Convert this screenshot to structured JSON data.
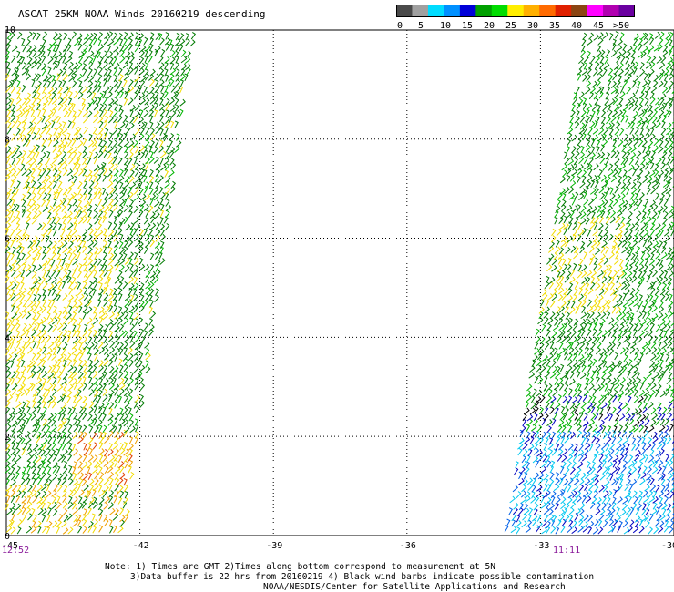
{
  "title": "ASCAT 25KM NOAA Winds 20160219 descending",
  "legend": {
    "tick_labels": [
      "0",
      "5",
      "10",
      "15",
      "20",
      "25",
      "30",
      "35",
      "40",
      "45",
      ">50 knots"
    ],
    "colors": [
      "#4a4a4a",
      "#a0a0a0",
      "#00dcff",
      "#0090ff",
      "#0000d8",
      "#00a000",
      "#00dc00",
      "#ffee00",
      "#ffb000",
      "#ff6a00",
      "#e02000",
      "#8b4513",
      "#ff00ff",
      "#b000b0",
      "#6a00a0"
    ]
  },
  "map": {
    "longitudes": [
      "-45",
      "-42",
      "-39",
      "-36",
      "-33",
      "-30"
    ],
    "latitudes": [
      "0",
      "2",
      "4",
      "6",
      "8",
      "10"
    ],
    "lon_range": [
      -45,
      -30
    ],
    "lat_range": [
      0,
      10.2
    ],
    "grid": "dotted"
  },
  "times": {
    "left": "12:52",
    "right": "11:11"
  },
  "notes": [
    "Note: 1) Times are GMT 2)Times along bottom correspond to measurement at 5N",
    "3)Data buffer is 22 hrs from 20160219 4) Black wind barbs indicate possible contamination",
    "NOAA/NESDIS/Center for Satellite Applications and Research"
  ],
  "swaths": [
    {
      "name": "west-pass",
      "time": "12:52",
      "lon_west": -45,
      "lon_east_top": -40.8,
      "lon_east_bottom": -42.4
    },
    {
      "name": "east-pass",
      "time": "11:11",
      "lon_west_top": -32.0,
      "lon_west_bottom": -33.8,
      "lon_east": -30
    }
  ]
}
